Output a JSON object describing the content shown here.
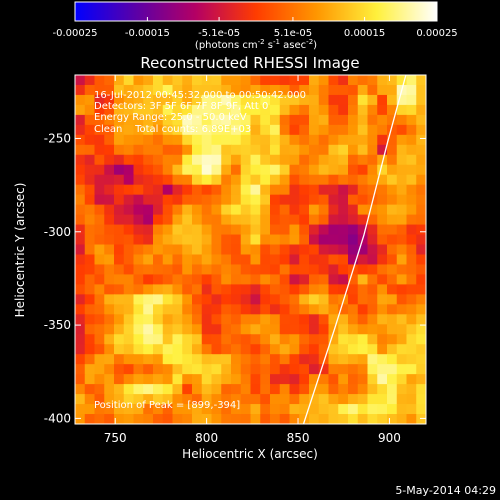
{
  "chart_data": {
    "type": "heatmap",
    "title": "Reconstructed RHESSI Image",
    "xlabel": "Heliocentric X (arcsec)",
    "ylabel": "Heliocentric Y (arcsec)",
    "xlim": [
      728,
      920
    ],
    "ylim": [
      -403,
      -216
    ],
    "x_ticks": [
      750,
      800,
      850,
      900
    ],
    "y_ticks": [
      -250,
      -300,
      -350,
      -400
    ],
    "colorbar": {
      "range": [
        -0.00025,
        0.00025
      ],
      "tick_labels": [
        "-0.00025",
        "-0.00015",
        "-5.1e-05",
        "5.1e-05",
        "0.00015",
        "0.00025"
      ],
      "unit_label_parts": [
        "(photons cm",
        "-2",
        " s",
        "-1",
        " asec",
        "-2",
        ")"
      ],
      "stops": [
        "#0000ff",
        "#5a00a8",
        "#b40064",
        "#ff3c00",
        "#ff9600",
        "#fff03c",
        "#ffffff"
      ]
    },
    "info_lines": [
      "16-Jul-2012 00:45:32.000 to 00:50:42.000",
      "Detectors: 3F 5F 6F 7F 8F 9F, Att 0",
      "Energy Range: 25.0 - 50.0 keV",
      "Clean    Total counts: 6.89E+03"
    ],
    "peak_text": "Position of Peak = [899,-394]",
    "limb_curve": [
      [
        853,
        -403
      ],
      [
        870,
        -352
      ],
      [
        886,
        -302
      ],
      [
        899,
        -252
      ],
      [
        909,
        -216
      ]
    ],
    "grid": {
      "nx": 36,
      "ny": 35
    }
  },
  "footer": {
    "timestamp": "5-May-2014 04:29"
  }
}
